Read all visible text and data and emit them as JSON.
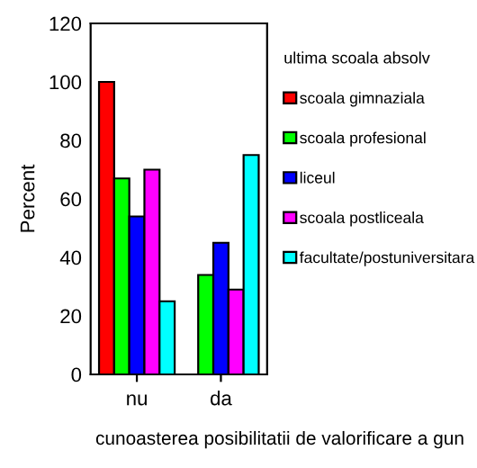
{
  "chart_data": {
    "type": "bar",
    "xlabel": "cunoasterea posibilitatii de valorificare a gun",
    "ylabel": "Percent",
    "legend_title": "ultima scoala absolv",
    "categories": [
      "nu",
      "da"
    ],
    "series": [
      {
        "name": "scoala gimnaziala",
        "color": "#ff0000",
        "values": [
          100,
          null
        ]
      },
      {
        "name": "scoala profesional",
        "color": "#00ff00",
        "values": [
          67,
          34
        ]
      },
      {
        "name": "liceul",
        "color": "#0000ff",
        "values": [
          54,
          45
        ]
      },
      {
        "name": "scoala postliceala",
        "color": "#ff00ff",
        "values": [
          70,
          29
        ]
      },
      {
        "name": "facultate/postuniversitara",
        "color": "#00ffff",
        "values": [
          25,
          75
        ]
      }
    ],
    "ylim": [
      0,
      120
    ],
    "yticks": [
      0,
      20,
      40,
      60,
      80,
      100,
      120
    ],
    "grid": false,
    "legend": "right"
  }
}
